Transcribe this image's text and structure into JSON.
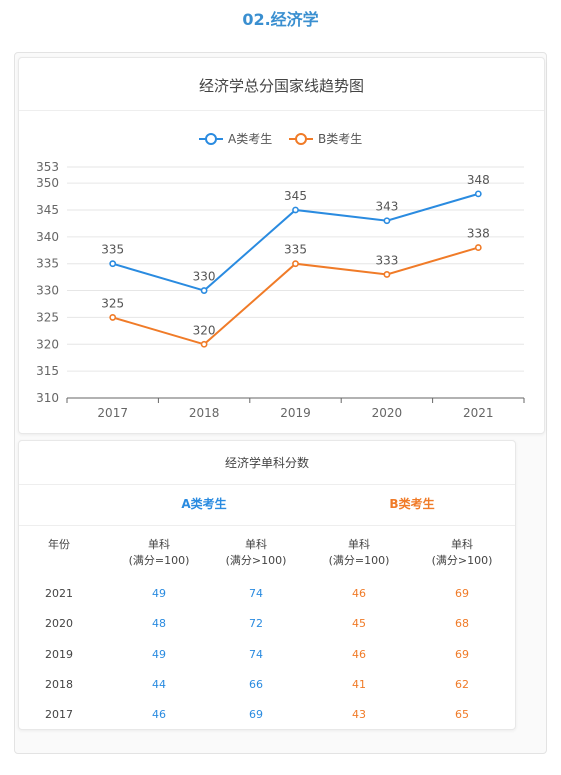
{
  "heading": "02.经济学",
  "chart_data": {
    "type": "line",
    "title": "经济学总分国家线趋势图",
    "categories": [
      "2017",
      "2018",
      "2019",
      "2020",
      "2021"
    ],
    "series": [
      {
        "name": "A类考生",
        "color": "#2a8be0",
        "values": [
          335,
          330,
          345,
          343,
          348
        ]
      },
      {
        "name": "B类考生",
        "color": "#f07b28",
        "values": [
          325,
          320,
          335,
          333,
          338
        ]
      }
    ],
    "ylim": [
      310,
      353
    ],
    "yticks": [
      "353",
      "350",
      "345",
      "340",
      "335",
      "330",
      "325",
      "320",
      "315",
      "310"
    ],
    "grid": true,
    "legend_position": "top"
  },
  "table": {
    "title": "经济学单科分数",
    "group_a": "A类考生",
    "group_b": "B类考生",
    "col_year": "年份",
    "col_single_line1": "单科",
    "col_low": "(满分=100)",
    "col_high": "(满分>100)",
    "rows": [
      {
        "year": "2021",
        "a_low": "49",
        "a_high": "74",
        "b_low": "46",
        "b_high": "69"
      },
      {
        "year": "2020",
        "a_low": "48",
        "a_high": "72",
        "b_low": "45",
        "b_high": "68"
      },
      {
        "year": "2019",
        "a_low": "49",
        "a_high": "74",
        "b_low": "46",
        "b_high": "69"
      },
      {
        "year": "2018",
        "a_low": "44",
        "a_high": "66",
        "b_low": "41",
        "b_high": "62"
      },
      {
        "year": "2017",
        "a_low": "46",
        "a_high": "69",
        "b_low": "43",
        "b_high": "65"
      }
    ]
  }
}
